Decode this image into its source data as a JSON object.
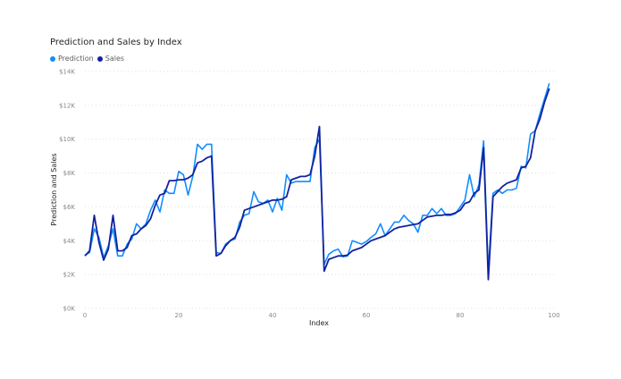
{
  "chart_data": {
    "type": "line",
    "title": "Prediction and Sales by Index",
    "xlabel": "Index",
    "ylabel": "Prediction and Sales",
    "xlim": [
      0,
      100
    ],
    "ylim": [
      0,
      14000
    ],
    "x_ticks": [
      0,
      20,
      40,
      60,
      80,
      100
    ],
    "y_ticks": [
      0,
      2000,
      4000,
      6000,
      8000,
      10000,
      12000,
      14000
    ],
    "y_tick_labels": [
      "$0K",
      "$2K",
      "$4K",
      "$6K",
      "$8K",
      "$10K",
      "$12K",
      "$14K"
    ],
    "x_tick_labels": [
      "0",
      "20",
      "40",
      "60",
      "80",
      "100"
    ],
    "legend_position": "top-left",
    "grid": "horizontal dotted",
    "series": [
      {
        "name": "Prediction",
        "color": "#118DFF",
        "values": [
          3150,
          3300,
          4700,
          4200,
          3000,
          3700,
          4700,
          3100,
          3100,
          3800,
          4100,
          5000,
          4700,
          5000,
          5800,
          6400,
          5700,
          7000,
          6800,
          6800,
          8100,
          7900,
          6700,
          7800,
          9700,
          9400,
          9700,
          9700,
          3300,
          3250,
          3800,
          4000,
          4100,
          5100,
          5500,
          5600,
          6900,
          6300,
          6200,
          6400,
          5700,
          6500,
          5800,
          7900,
          7400,
          7500,
          7500,
          7500,
          7500,
          9500,
          10000,
          2600,
          3200,
          3400,
          3500,
          3050,
          3100,
          4000,
          3900,
          3800,
          3950,
          4200,
          4400,
          5000,
          4300,
          4700,
          5100,
          5100,
          5500,
          5200,
          5000,
          4500,
          5500,
          5500,
          5900,
          5600,
          5900,
          5500,
          5500,
          5600,
          6000,
          6400,
          7900,
          6600,
          7300,
          9900,
          2200,
          6800,
          7000,
          6800,
          7000,
          7000,
          7100,
          8400,
          8300,
          10300,
          10500,
          11500,
          12400,
          13300
        ],
        "label_index_present": true
      },
      {
        "name": "Sales",
        "color": "#12239E",
        "values": [
          3100,
          3400,
          5500,
          3900,
          2850,
          3500,
          5500,
          3400,
          3400,
          3600,
          4300,
          4400,
          4700,
          4900,
          5300,
          6100,
          6700,
          6800,
          7550,
          7550,
          7600,
          7600,
          7700,
          7900,
          8600,
          8700,
          8900,
          9000,
          3100,
          3250,
          3700,
          4000,
          4200,
          4800,
          5800,
          5900,
          6000,
          6100,
          6200,
          6300,
          6400,
          6400,
          6450,
          6600,
          7600,
          7700,
          7800,
          7800,
          7900,
          9000,
          10750,
          2200,
          2900,
          3000,
          3100,
          3100,
          3150,
          3400,
          3500,
          3600,
          3800,
          4000,
          4100,
          4200,
          4300,
          4500,
          4700,
          4800,
          4850,
          4900,
          4950,
          5000,
          5200,
          5400,
          5450,
          5500,
          5500,
          5550,
          5550,
          5650,
          5800,
          6200,
          6300,
          6800,
          7000,
          9500,
          1700,
          6600,
          6900,
          7200,
          7400,
          7500,
          7600,
          8300,
          8400,
          8900,
          10500,
          11200,
          12200,
          13000
        ]
      }
    ]
  }
}
